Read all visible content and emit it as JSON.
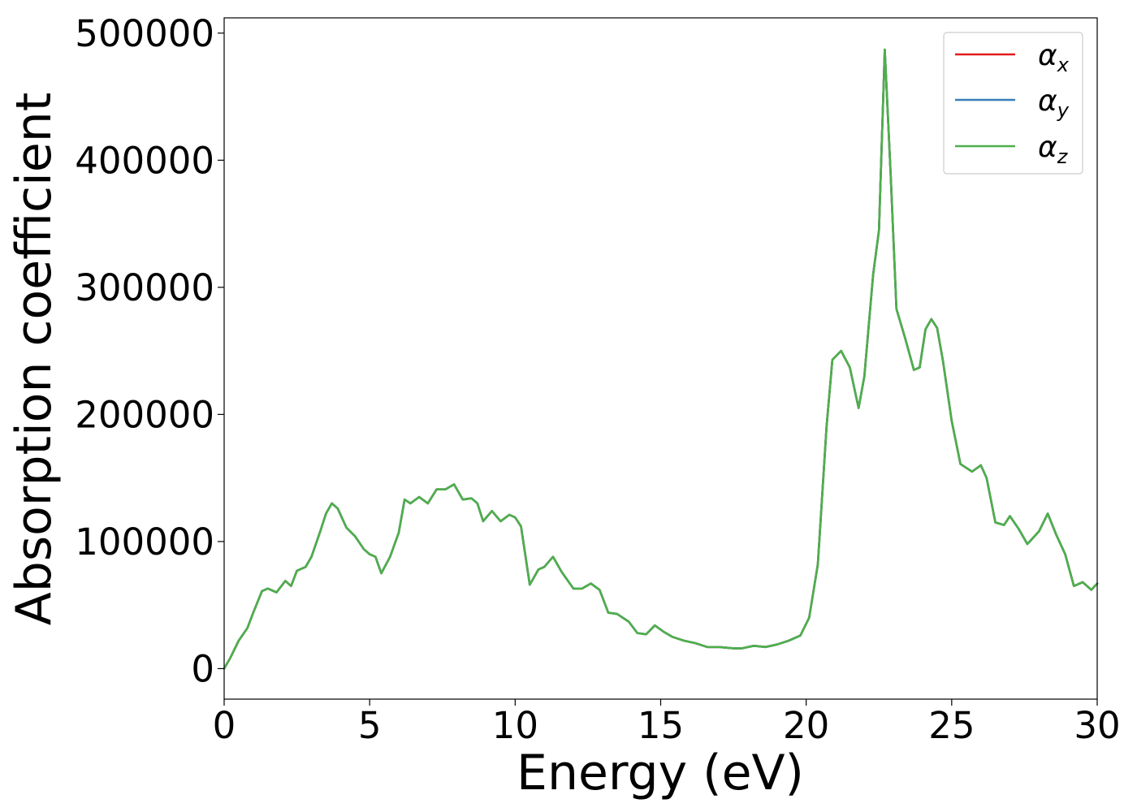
{
  "chart_data": {
    "type": "line",
    "title": "",
    "xlabel": "Energy (eV)",
    "ylabel": "Absorption coefficient",
    "xlim": [
      0,
      30
    ],
    "ylim": [
      -24000,
      512000
    ],
    "xticks": [
      0,
      5,
      10,
      15,
      20,
      25,
      30
    ],
    "xtick_labels": [
      "0",
      "5",
      "10",
      "15",
      "20",
      "25",
      "30"
    ],
    "yticks": [
      0,
      100000,
      200000,
      300000,
      400000,
      500000
    ],
    "ytick_labels": [
      "0",
      "100000",
      "200000",
      "300000",
      "400000",
      "500000"
    ],
    "grid": false,
    "legend_position": "top-right",
    "series": [
      {
        "name": "x",
        "label_main": "α",
        "label_sub": "x",
        "color": "#e41a1c",
        "data_ref": "shared"
      },
      {
        "name": "y",
        "label_main": "α",
        "label_sub": "y",
        "color": "#377eb8",
        "data_ref": "shared"
      },
      {
        "name": "z",
        "label_main": "α",
        "label_sub": "z",
        "color": "#4daf4a",
        "data_ref": "shared"
      }
    ],
    "x": [
      0,
      0.2,
      0.5,
      0.8,
      1.0,
      1.3,
      1.5,
      1.8,
      2.1,
      2.3,
      2.5,
      2.8,
      3.0,
      3.3,
      3.5,
      3.7,
      3.9,
      4.2,
      4.5,
      4.8,
      5.0,
      5.2,
      5.4,
      5.7,
      6.0,
      6.2,
      6.4,
      6.7,
      7.0,
      7.3,
      7.6,
      7.9,
      8.2,
      8.5,
      8.7,
      8.9,
      9.2,
      9.5,
      9.8,
      10.0,
      10.2,
      10.5,
      10.8,
      11.0,
      11.3,
      11.6,
      12.0,
      12.3,
      12.6,
      12.9,
      13.2,
      13.5,
      13.9,
      14.2,
      14.5,
      14.8,
      15.1,
      15.4,
      15.8,
      16.2,
      16.6,
      17.0,
      17.5,
      17.8,
      18.2,
      18.6,
      19.0,
      19.4,
      19.8,
      20.1,
      20.4,
      20.7,
      20.9,
      21.2,
      21.5,
      21.8,
      22.0,
      22.3,
      22.5,
      22.7,
      22.9,
      23.1,
      23.4,
      23.7,
      23.9,
      24.1,
      24.3,
      24.5,
      24.7,
      25.0,
      25.3,
      25.7,
      26.0,
      26.2,
      26.5,
      26.8,
      27.0,
      27.3,
      27.6,
      28.0,
      28.3,
      28.6,
      28.9,
      29.2,
      29.5,
      29.8,
      30.0
    ],
    "y": [
      0,
      8000,
      22000,
      32000,
      44000,
      61000,
      63000,
      60000,
      69000,
      65000,
      77000,
      80000,
      88000,
      108000,
      122000,
      130000,
      126000,
      111000,
      104000,
      94000,
      90000,
      88000,
      75000,
      88000,
      107000,
      133000,
      130000,
      135000,
      130000,
      141000,
      141000,
      145000,
      133000,
      134000,
      130000,
      116000,
      124000,
      116000,
      121000,
      119000,
      112000,
      66000,
      78000,
      80000,
      88000,
      76000,
      63000,
      63000,
      67000,
      62000,
      44000,
      43000,
      37000,
      28000,
      27000,
      34000,
      29000,
      25000,
      22000,
      20000,
      17000,
      17000,
      16000,
      16000,
      18000,
      17000,
      19000,
      22000,
      26000,
      40000,
      82000,
      190000,
      243000,
      250000,
      237000,
      205000,
      230000,
      310000,
      345000,
      487000,
      390000,
      283000,
      260000,
      235000,
      237000,
      267000,
      275000,
      268000,
      242000,
      195000,
      161000,
      155000,
      160000,
      150000,
      115000,
      113000,
      120000,
      110000,
      98000,
      108000,
      122000,
      105000,
      90000,
      65000,
      68000,
      62000,
      67000
    ]
  }
}
